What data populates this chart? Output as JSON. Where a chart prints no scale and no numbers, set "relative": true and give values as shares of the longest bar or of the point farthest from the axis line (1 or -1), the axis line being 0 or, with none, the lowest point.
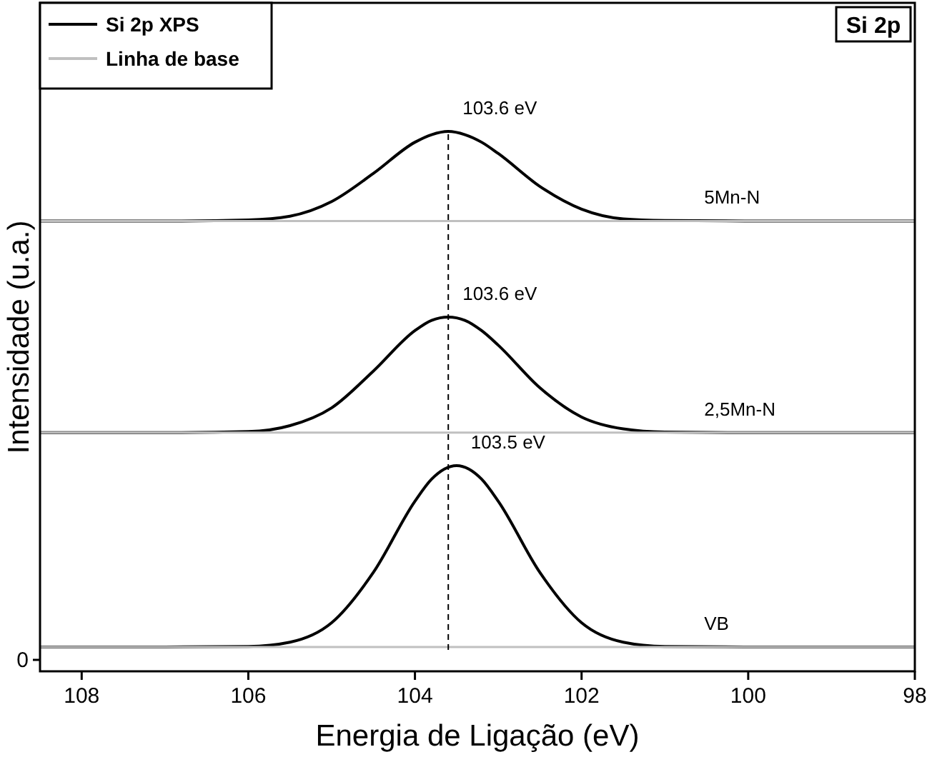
{
  "chart_data": {
    "type": "line",
    "relative": true,
    "xlabel": "Energia de Ligação (eV)",
    "ylabel": "Intensidade (u.a.)",
    "xlim": [
      108.5,
      98
    ],
    "xticks": [
      108,
      106,
      104,
      102,
      100,
      98
    ],
    "legend": "top left",
    "grid": false,
    "marker": "none",
    "line_style": "solid",
    "series": [
      {
        "name": "Si 2p XPS",
        "color": "#000000",
        "x": [
          108.5,
          107,
          106,
          105.5,
          105,
          104.5,
          104,
          103.8,
          103.6,
          103.4,
          103.2,
          103,
          102.5,
          102,
          101.5,
          101,
          100,
          98
        ],
        "values": [
          0.834,
          0.834,
          0.836,
          0.843,
          0.87,
          0.922,
          0.98,
          0.994,
          1.0,
          0.994,
          0.98,
          0.959,
          0.898,
          0.856,
          0.838,
          0.835,
          0.834,
          0.834
        ]
      },
      {
        "color": "#000000",
        "x": [
          108.5,
          107,
          106,
          105.5,
          105,
          104.5,
          104,
          103.8,
          103.6,
          103.4,
          103.2,
          103,
          102.5,
          102,
          101.5,
          101,
          100,
          98
        ],
        "values": [
          0.442,
          0.442,
          0.444,
          0.455,
          0.488,
          0.556,
          0.631,
          0.65,
          0.656,
          0.65,
          0.631,
          0.604,
          0.525,
          0.471,
          0.449,
          0.443,
          0.442,
          0.442
        ]
      },
      {
        "color": "#000000",
        "x": [
          108.5,
          107,
          106,
          105.5,
          105,
          104.5,
          104,
          103.8,
          103.5,
          103.2,
          103,
          102.5,
          102,
          101.5,
          101,
          100,
          98
        ],
        "values": [
          0.045,
          0.045,
          0.046,
          0.054,
          0.09,
          0.183,
          0.315,
          0.356,
          0.381,
          0.356,
          0.315,
          0.183,
          0.09,
          0.054,
          0.046,
          0.045,
          0.045
        ]
      },
      {
        "name": "Linha de base",
        "color": "#c0c0c0",
        "x": [
          108.5,
          98
        ],
        "values": [
          0.834,
          0.834
        ]
      },
      {
        "color": "#c0c0c0",
        "x": [
          108.5,
          98
        ],
        "values": [
          0.442,
          0.442
        ]
      },
      {
        "color": "#c0c0c0",
        "x": [
          108.5,
          98
        ],
        "values": [
          0.045,
          0.045
        ]
      }
    ],
    "ref_lines": [
      {
        "axis": "x",
        "value": 103.6,
        "color": "#000000",
        "line_style": "dashed"
      }
    ],
    "annotations": [
      "Si 2p",
      "0",
      {
        "text": "103.6 eV",
        "x": 103.6,
        "y": 1.0
      },
      {
        "text": "103.6 eV",
        "x": 103.6,
        "y": 0.656
      },
      {
        "text": "103.5 eV",
        "x": 103.5,
        "y": 0.381
      },
      {
        "text": "5Mn-N",
        "x": 100.7,
        "y": 0.834
      },
      {
        "text": "2,5Mn-N",
        "x": 100.7,
        "y": 0.442
      },
      {
        "text": "VB",
        "x": 100.7,
        "y": 0.045
      }
    ]
  }
}
